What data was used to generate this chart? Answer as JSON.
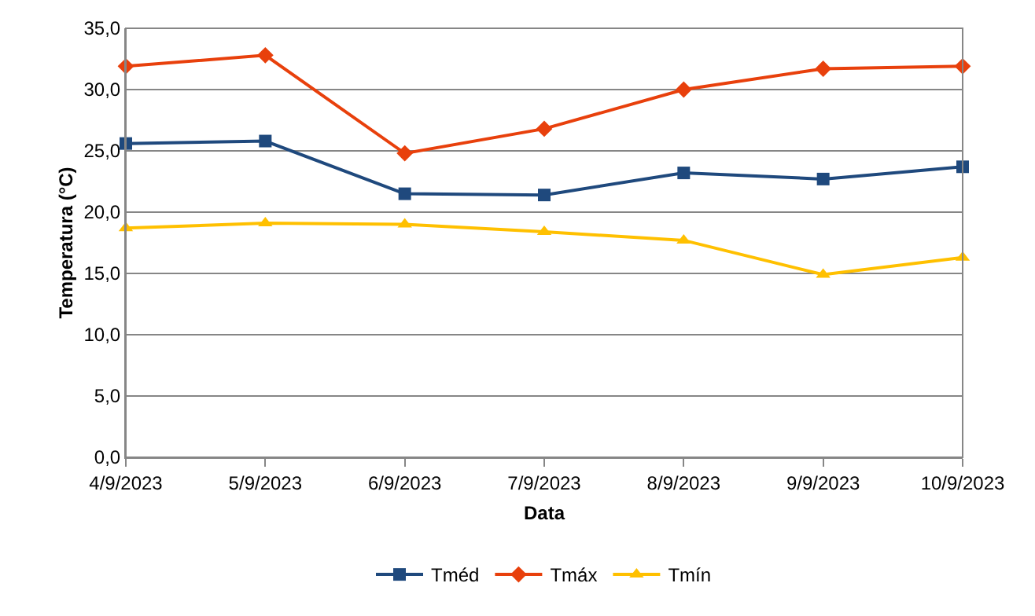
{
  "chart_data": {
    "type": "line",
    "xlabel": "Data",
    "ylabel": "Temperatura (°C)",
    "categories": [
      "4/9/2023",
      "5/9/2023",
      "6/9/2023",
      "7/9/2023",
      "8/9/2023",
      "9/9/2023",
      "10/9/2023"
    ],
    "series": [
      {
        "name": "Tméd",
        "color": "#1f497d",
        "marker": "square",
        "values": [
          25.6,
          25.8,
          21.5,
          21.4,
          23.2,
          22.7,
          23.7
        ]
      },
      {
        "name": "Tmáx",
        "color": "#e8400c",
        "marker": "diamond",
        "values": [
          31.9,
          32.8,
          24.8,
          26.8,
          30.0,
          31.7,
          31.9
        ]
      },
      {
        "name": "Tmín",
        "color": "#ffc000",
        "marker": "triangle",
        "values": [
          18.7,
          19.1,
          19.0,
          18.4,
          17.7,
          14.9,
          16.3
        ]
      }
    ],
    "ylim": [
      0,
      35
    ],
    "yticks": [
      {
        "value": 0,
        "label": "0,0"
      },
      {
        "value": 5,
        "label": "5,0"
      },
      {
        "value": 10,
        "label": "10,0"
      },
      {
        "value": 15,
        "label": "15,0"
      },
      {
        "value": 20,
        "label": "20,0"
      },
      {
        "value": 25,
        "label": "25,0"
      },
      {
        "value": 30,
        "label": "30,0"
      },
      {
        "value": 35,
        "label": "35,0"
      }
    ],
    "grid": "y",
    "legend": "bottom",
    "line_style": "solid"
  }
}
